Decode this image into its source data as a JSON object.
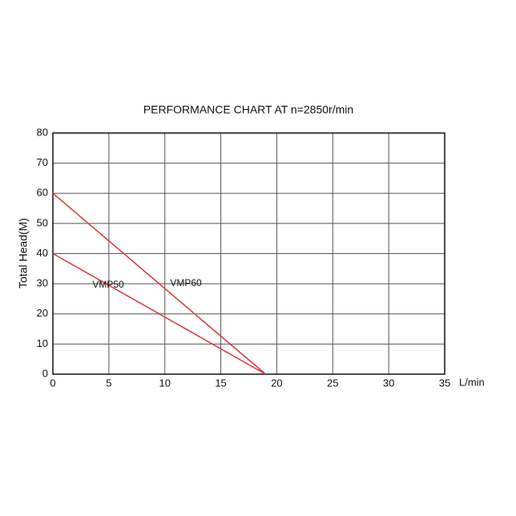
{
  "chart_data": {
    "type": "line",
    "title": "PERFORMANCE CHART AT n=2850r/min",
    "x_label": "L/min",
    "y_label": "Total Head(M)",
    "x": [
      0,
      19
    ],
    "series": [
      {
        "name": "VMP60",
        "color": "#e0353b",
        "values": [
          60,
          0
        ]
      },
      {
        "name": "VMP50",
        "color": "#e0353b",
        "values": [
          40,
          0
        ]
      }
    ],
    "xlim": [
      0,
      35
    ],
    "xticks": [
      0,
      5,
      10,
      15,
      20,
      25,
      30,
      35
    ],
    "ylim": [
      0,
      80
    ],
    "yticks": [
      0,
      10,
      20,
      30,
      40,
      50,
      60,
      70,
      80
    ],
    "grid": true
  }
}
